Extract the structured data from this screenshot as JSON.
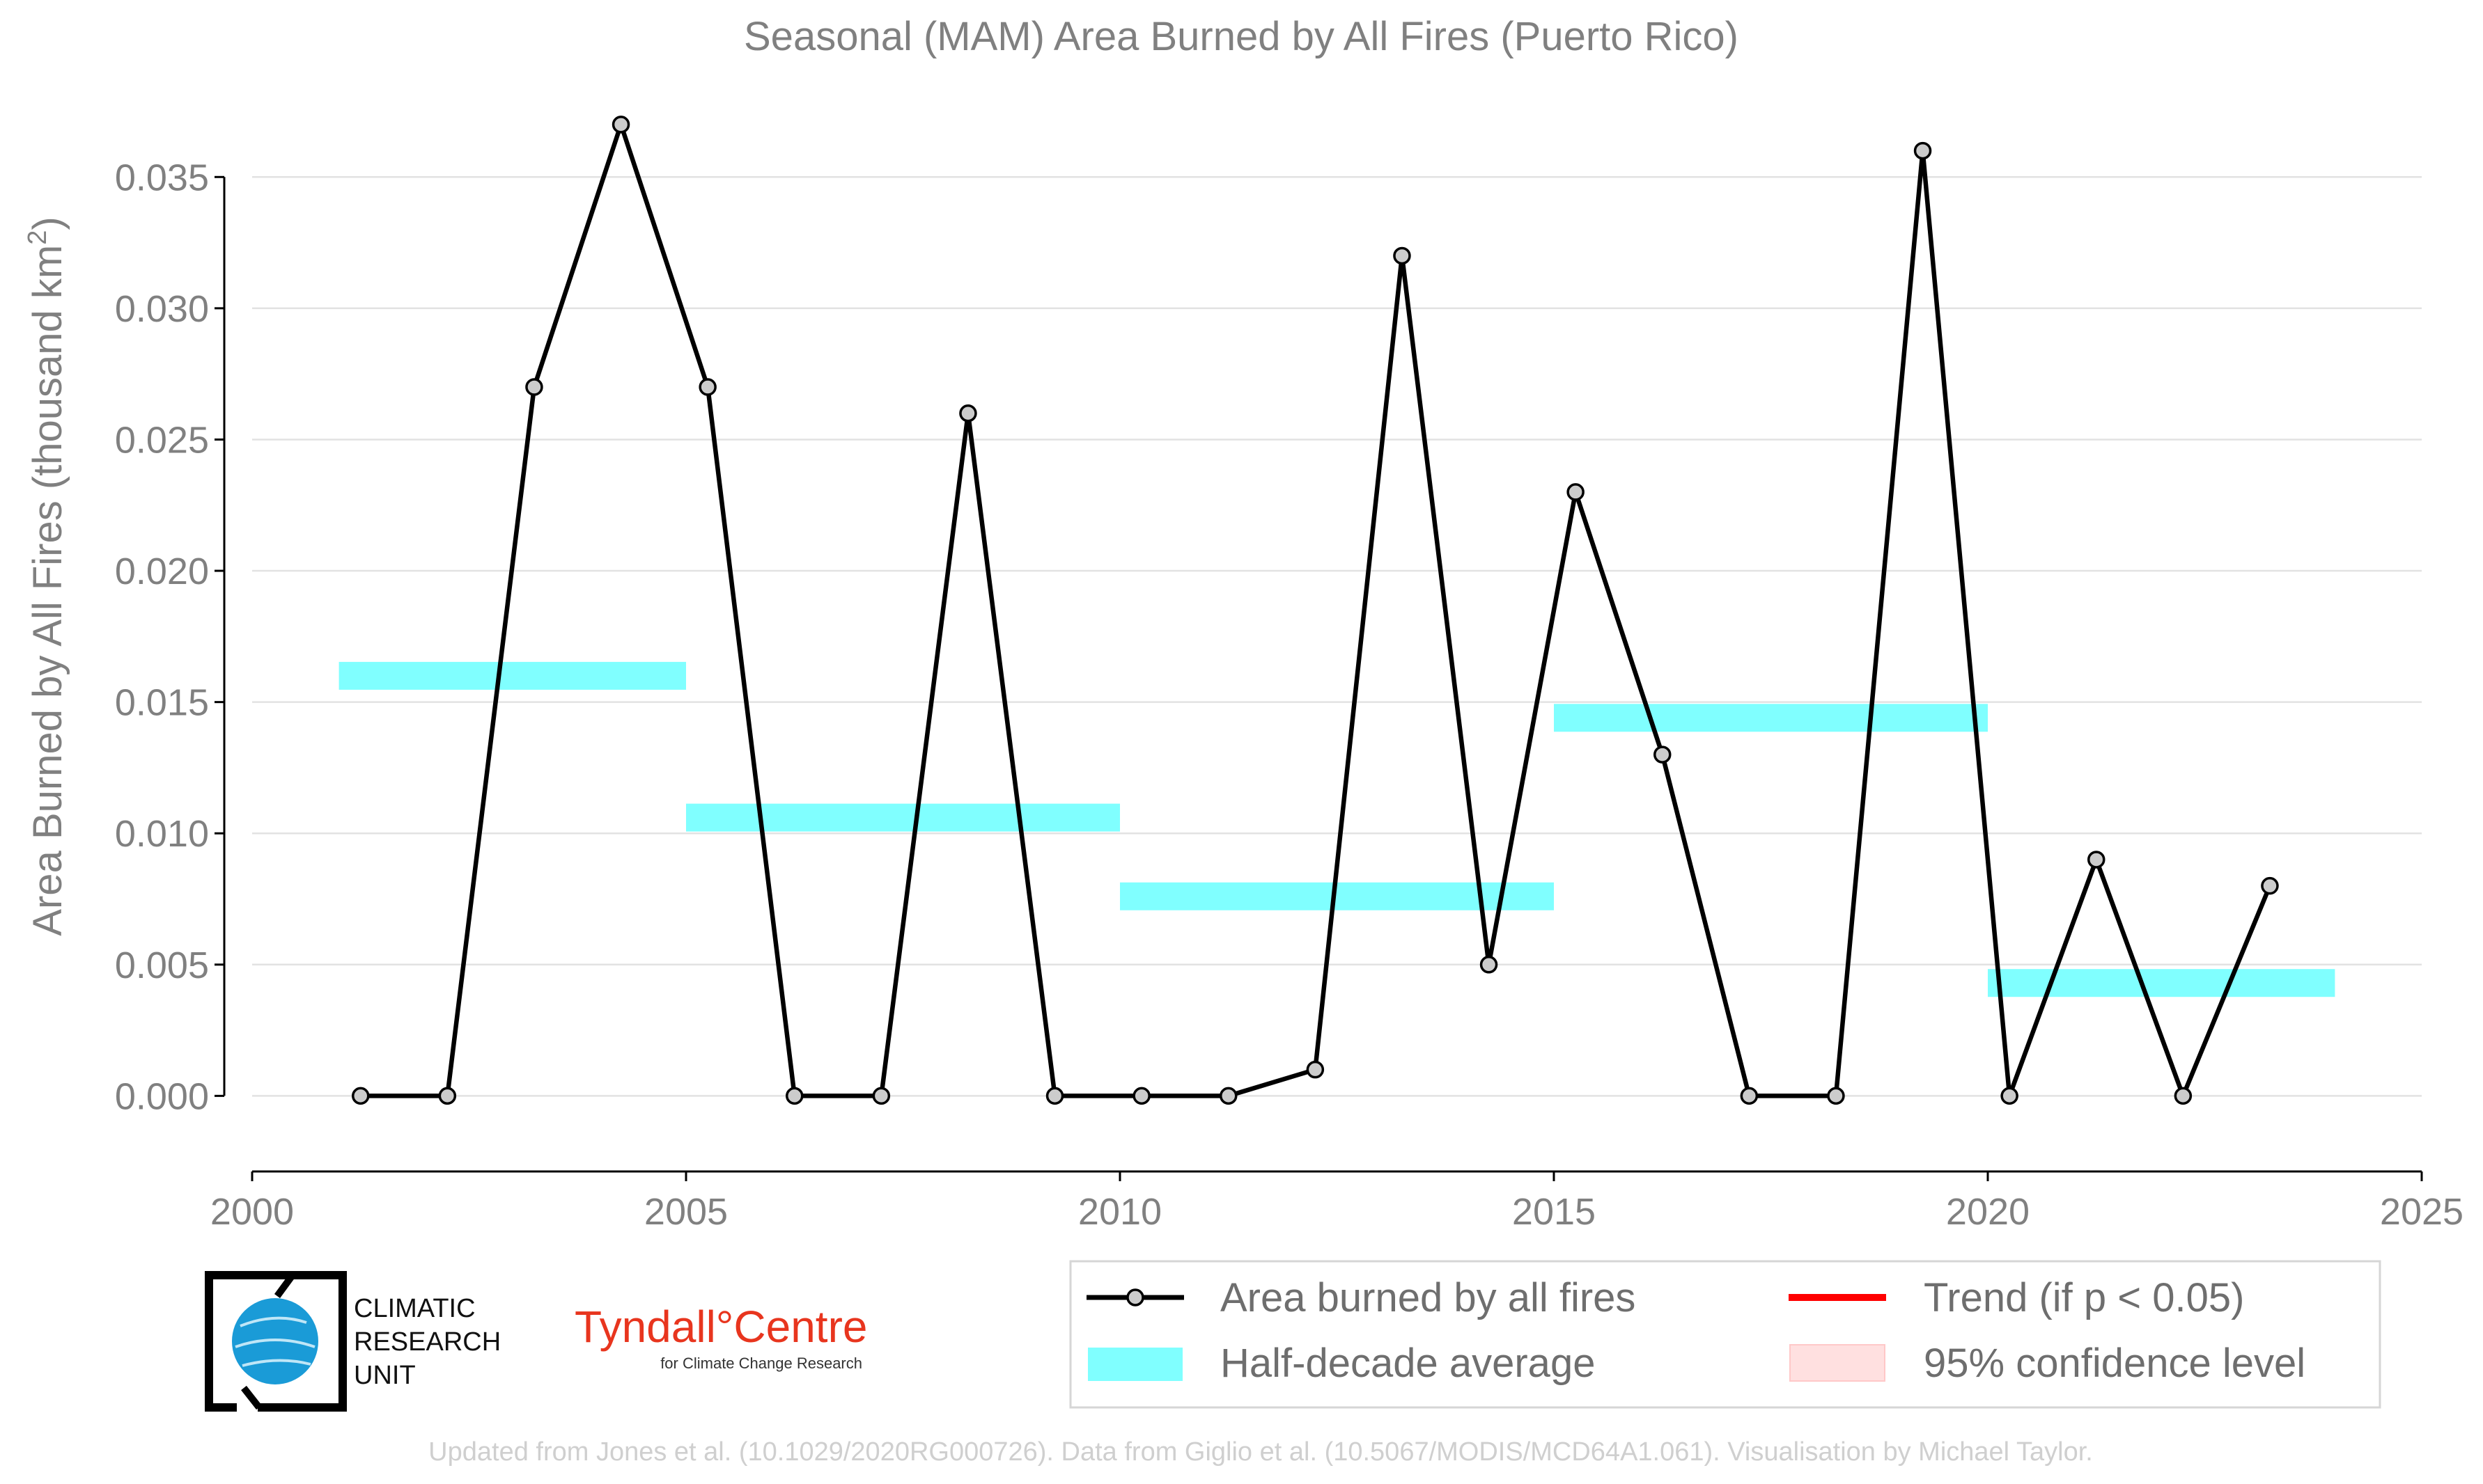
{
  "chart_data": {
    "type": "line",
    "title": "Seasonal (MAM) Area Burned by All Fires (Puerto Rico)",
    "xlabel": "",
    "ylabel": "Area Burned by All Fires (thousand km",
    "ylabel_sup": "2",
    "ylabel_end": ")",
    "xlim": [
      2000,
      2025
    ],
    "ylim": [
      -0.0028,
      0.0375
    ],
    "x_ticks": [
      2000,
      2005,
      2010,
      2015,
      2020,
      2025
    ],
    "y_ticks": [
      0.0,
      0.005,
      0.01,
      0.015,
      0.02,
      0.025,
      0.03,
      0.035
    ],
    "y_tick_labels": [
      "0.000",
      "0.005",
      "0.010",
      "0.015",
      "0.020",
      "0.025",
      "0.030",
      "0.035"
    ],
    "grid": "horizontal",
    "series": [
      {
        "name": "Area burned by all fires",
        "color": "#000000",
        "marker_fill": "#cccccc",
        "x": [
          2001.25,
          2002.25,
          2003.25,
          2004.25,
          2005.25,
          2006.25,
          2007.25,
          2008.25,
          2009.25,
          2010.25,
          2011.25,
          2012.25,
          2013.25,
          2014.25,
          2015.25,
          2016.25,
          2017.25,
          2018.25,
          2019.25,
          2020.25,
          2021.25,
          2022.25,
          2023.25
        ],
        "y": [
          0.0,
          0.0,
          0.027,
          0.037,
          0.027,
          0.0,
          0.0,
          0.026,
          0.0,
          0.0,
          0.0,
          0.001,
          0.032,
          0.005,
          0.023,
          0.013,
          0.0,
          0.0,
          0.036,
          0.0,
          0.009,
          0.0,
          0.008
        ]
      },
      {
        "name": "Half-decade average",
        "color": "#80ffff",
        "segments": [
          {
            "x0": 2001,
            "x1": 2005,
            "y": 0.016
          },
          {
            "x0": 2005,
            "x1": 2010,
            "y": 0.0106
          },
          {
            "x0": 2010,
            "x1": 2015,
            "y": 0.0076
          },
          {
            "x0": 2015,
            "x1": 2020,
            "y": 0.0144
          },
          {
            "x0": 2020,
            "x1": 2024,
            "y": 0.0043
          }
        ]
      }
    ],
    "legend": {
      "placement": "bottom-right",
      "items": [
        {
          "label": "Area burned by all fires",
          "kind": "line-marker",
          "color": "#000000"
        },
        {
          "label": "Trend (if p < 0.05)",
          "kind": "line",
          "color": "#ff0000"
        },
        {
          "label": "Half-decade average",
          "kind": "band",
          "color": "#80ffff"
        },
        {
          "label": "95% confidence level",
          "kind": "patch",
          "color": "#ffe0e0"
        }
      ]
    }
  },
  "logos": {
    "cru_lines": [
      "CLIMATIC",
      "RESEARCH",
      "UNIT"
    ],
    "tyndall_main": "Tyndall°Centre",
    "tyndall_sub": "for Climate Change Research"
  },
  "footer": "Updated from Jones et al. (10.1029/2020RG000726). Data from Giglio et al. (10.5067/MODIS/MCD64A1.061). Visualisation by Michael Taylor."
}
